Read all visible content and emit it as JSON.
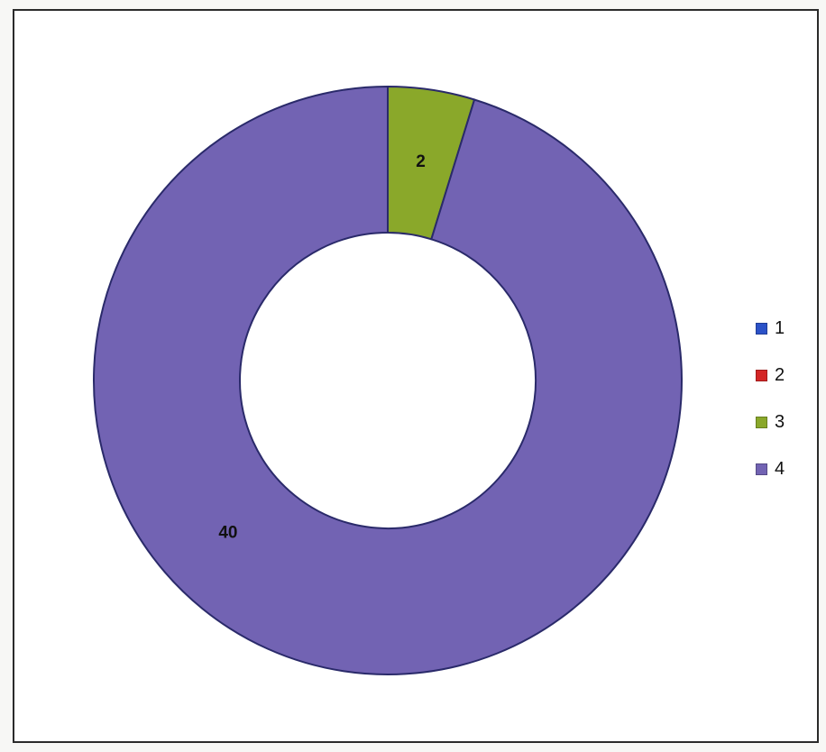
{
  "chart_data": {
    "type": "pie",
    "donut": true,
    "title": "",
    "categories": [
      "1",
      "2",
      "3",
      "4"
    ],
    "values": [
      0,
      0,
      2,
      40
    ],
    "data_labels": [
      "",
      "",
      "2",
      "40"
    ],
    "colors": [
      "#2b52c8",
      "#d42525",
      "#8aa82a",
      "#7263b3"
    ],
    "legend": {
      "position": "right",
      "entries": [
        "1",
        "2",
        "3",
        "4"
      ]
    },
    "start_angle_deg": 0,
    "direction": "clockwise"
  }
}
